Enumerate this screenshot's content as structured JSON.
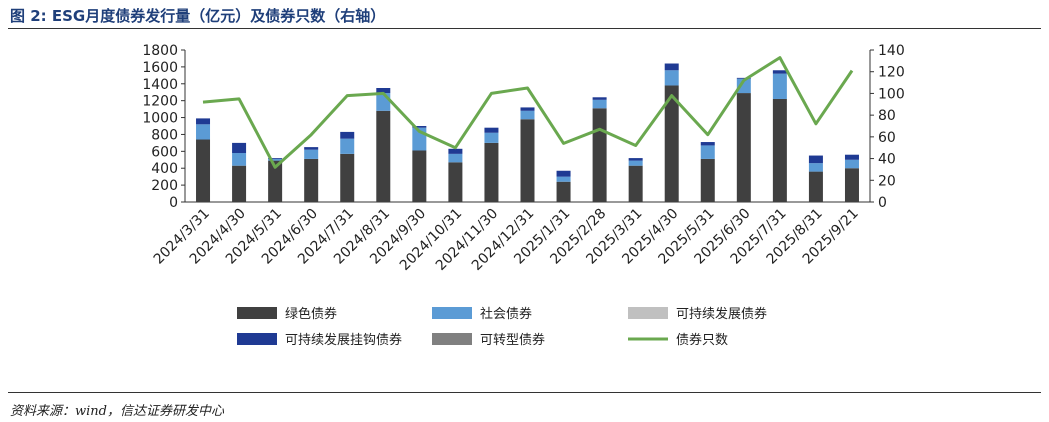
{
  "figure_title": "图 2: ESG月度债券发行量（亿元）及债券只数（右轴）",
  "source": "资料来源：wind，信达证券研发中心",
  "colors": {
    "green_bond": "#404040",
    "social_bond": "#5b9bd5",
    "sustainable_bond": "#c0c0c0",
    "sl_bond": "#1f3a93",
    "transition_bond": "#808080",
    "count_line": "#6aa84f"
  },
  "chart_data": {
    "type": "bar",
    "title": "",
    "xlabel": "",
    "ylabel": "",
    "ylim": [
      0,
      1800
    ],
    "y2lim": [
      0,
      140
    ],
    "y_ticks": [
      0,
      200,
      400,
      600,
      800,
      1000,
      1200,
      1400,
      1600,
      1800
    ],
    "y2_ticks": [
      0,
      20,
      40,
      60,
      80,
      100,
      120,
      140
    ],
    "grid": false,
    "legend_position": "bottom",
    "categories": [
      "2024/3/31",
      "2024/4/30",
      "2024/5/31",
      "2024/6/30",
      "2024/7/31",
      "2024/8/31",
      "2024/9/30",
      "2024/10/31",
      "2024/11/30",
      "2024/12/31",
      "2025/1/31",
      "2025/2/28",
      "2025/3/31",
      "2025/4/30",
      "2025/5/31",
      "2025/6/30",
      "2025/7/31",
      "2025/8/31",
      "2025/9/21"
    ],
    "series": [
      {
        "name": "绿色债券",
        "type": "bar",
        "color_key": "green_bond",
        "values": [
          740,
          430,
          490,
          510,
          570,
          1080,
          610,
          470,
          700,
          980,
          240,
          1110,
          430,
          1380,
          510,
          1290,
          1220,
          360,
          400
        ]
      },
      {
        "name": "社会债券",
        "type": "bar",
        "color_key": "social_bond",
        "values": [
          180,
          150,
          20,
          110,
          180,
          210,
          270,
          100,
          120,
          100,
          60,
          100,
          60,
          180,
          160,
          170,
          300,
          100,
          100
        ]
      },
      {
        "name": "可持续发展债券",
        "type": "bar",
        "color_key": "sustainable_bond",
        "values": [
          0,
          0,
          0,
          0,
          0,
          0,
          0,
          0,
          0,
          0,
          0,
          0,
          0,
          0,
          0,
          0,
          0,
          0,
          0
        ]
      },
      {
        "name": "可持续发展挂钩债券",
        "type": "bar",
        "color_key": "sl_bond",
        "values": [
          70,
          120,
          10,
          30,
          80,
          60,
          20,
          60,
          60,
          40,
          70,
          30,
          30,
          80,
          40,
          10,
          40,
          90,
          60
        ]
      },
      {
        "name": "可转型债券",
        "type": "bar",
        "color_key": "transition_bond",
        "values": [
          0,
          0,
          0,
          0,
          0,
          0,
          0,
          0,
          0,
          0,
          0,
          0,
          0,
          0,
          0,
          0,
          0,
          0,
          0
        ]
      },
      {
        "name": "债券只数",
        "type": "line",
        "axis": "right",
        "color_key": "count_line",
        "values": [
          92,
          95,
          32,
          62,
          98,
          100,
          65,
          50,
          100,
          105,
          54,
          67,
          52,
          98,
          62,
          112,
          133,
          72,
          121
        ]
      }
    ]
  }
}
